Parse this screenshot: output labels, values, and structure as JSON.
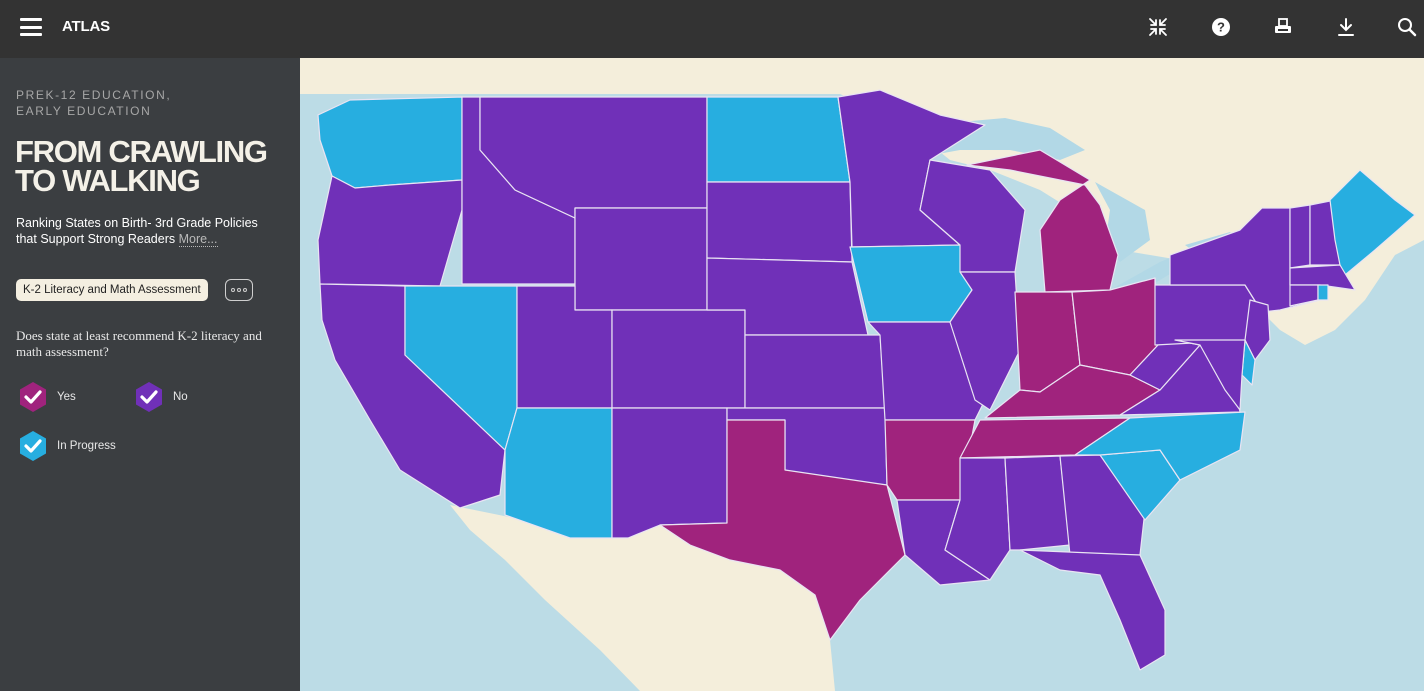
{
  "app": {
    "brand": "ATLAS"
  },
  "toolbar": {
    "icons": [
      "collapse-icon",
      "help-icon",
      "print-icon",
      "download-icon",
      "search-icon"
    ]
  },
  "sidebar": {
    "kicker_line1": "PREK-12 EDUCATION,",
    "kicker_line2": "EARLY EDUCATION",
    "title_line1": "FROM CRAWLING",
    "title_line2": "TO WALKING",
    "subtitle_line1": "Ranking States on Birth- 3rd Grade Policies",
    "subtitle_line2": "that Support Strong Readers",
    "more_link": "More...",
    "filter_label": "K-2 Literacy and Math Assessment",
    "question": "Does state at least recommend K-2 literacy and math assessment?"
  },
  "legend": [
    {
      "label": "Yes",
      "color": "#a0237d",
      "checked": true
    },
    {
      "label": "No",
      "color": "#7030b8",
      "checked": true
    },
    {
      "label": "In Progress",
      "color": "#27aee0",
      "checked": true
    }
  ],
  "map": {
    "colors": {
      "yes": "#a0237d",
      "no": "#7030b8",
      "in_progress": "#27aee0",
      "land": "#f4eedb",
      "water": "#bcdce6",
      "lake": "#b2d8e6"
    },
    "states": {
      "WA": "in_progress",
      "OR": "no",
      "CA": "no",
      "NV": "in_progress",
      "ID": "no",
      "MT": "no",
      "WY": "no",
      "UT": "no",
      "AZ": "in_progress",
      "CO": "no",
      "NM": "no",
      "ND": "in_progress",
      "SD": "no",
      "NE": "no",
      "KS": "no",
      "OK": "no",
      "TX": "yes",
      "MN": "no",
      "IA": "in_progress",
      "MO": "no",
      "AR": "yes",
      "LA": "no",
      "WI": "no",
      "IL": "no",
      "MI": "yes",
      "IN": "yes",
      "OH": "yes",
      "KY": "yes",
      "TN": "yes",
      "MS": "no",
      "AL": "no",
      "GA": "no",
      "FL": "no",
      "SC": "in_progress",
      "NC": "in_progress",
      "VA": "no",
      "WV": "no",
      "PA": "no",
      "NY": "no",
      "NJ": "no",
      "DE": "in_progress",
      "MD": "no",
      "VT": "no",
      "NH": "no",
      "ME": "in_progress",
      "MA": "no",
      "CT": "no",
      "RI": "in_progress"
    }
  }
}
